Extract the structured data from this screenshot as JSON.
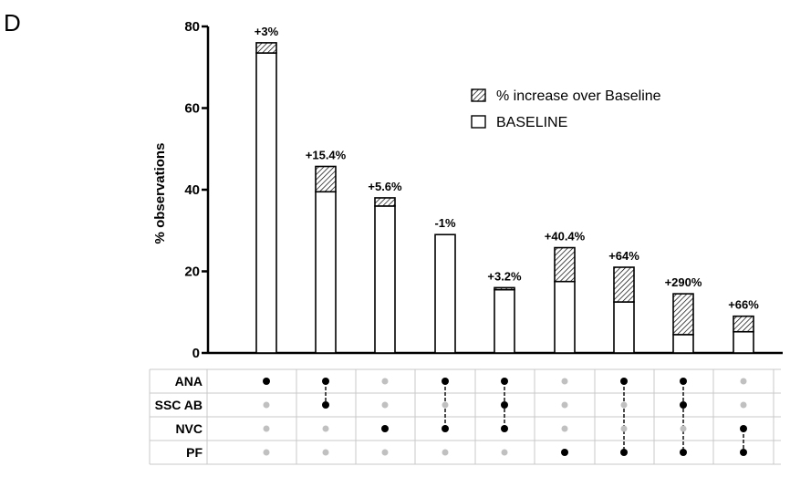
{
  "panel_letter": "D",
  "chart_data": {
    "type": "bar",
    "stacked": true,
    "ylabel": "% observations",
    "ylim": [
      0,
      80
    ],
    "yticks": [
      0,
      20,
      40,
      60,
      80
    ],
    "legend": {
      "placement": "top-right",
      "entries": [
        "% increase over Baseline",
        "BASELINE"
      ]
    },
    "series": [
      {
        "name": "BASELINE",
        "values": [
          73.5,
          39.5,
          36,
          29,
          15.5,
          17.5,
          12.5,
          4.5,
          5.2
        ]
      },
      {
        "name": "% increase over Baseline",
        "values": [
          2.5,
          6.2,
          2.0,
          0,
          0.5,
          8.3,
          8.5,
          10,
          3.8
        ]
      }
    ],
    "data_labels": [
      "+3%",
      "+15.4%",
      "+5.6%",
      "-1%",
      "+3.2%",
      "+40.4%",
      "+64%",
      "+290%",
      "+66%"
    ],
    "colors": {
      "bar_fill": "#ffffff",
      "stroke": "#000000",
      "hatch": "#000000",
      "dot_active": "#000000",
      "dot_inactive": "#c0c0c0",
      "grid": "#c8c8c8"
    },
    "matrix": {
      "rows": [
        "ANA",
        "SSC AB",
        "NVC",
        "PF"
      ],
      "active": [
        [
          1,
          0,
          0,
          0
        ],
        [
          1,
          1,
          0,
          0
        ],
        [
          0,
          0,
          1,
          0
        ],
        [
          1,
          0,
          1,
          0
        ],
        [
          1,
          1,
          1,
          0
        ],
        [
          0,
          0,
          0,
          1
        ],
        [
          1,
          0,
          0,
          1
        ],
        [
          1,
          1,
          0,
          1
        ],
        [
          0,
          0,
          1,
          1
        ]
      ]
    }
  }
}
